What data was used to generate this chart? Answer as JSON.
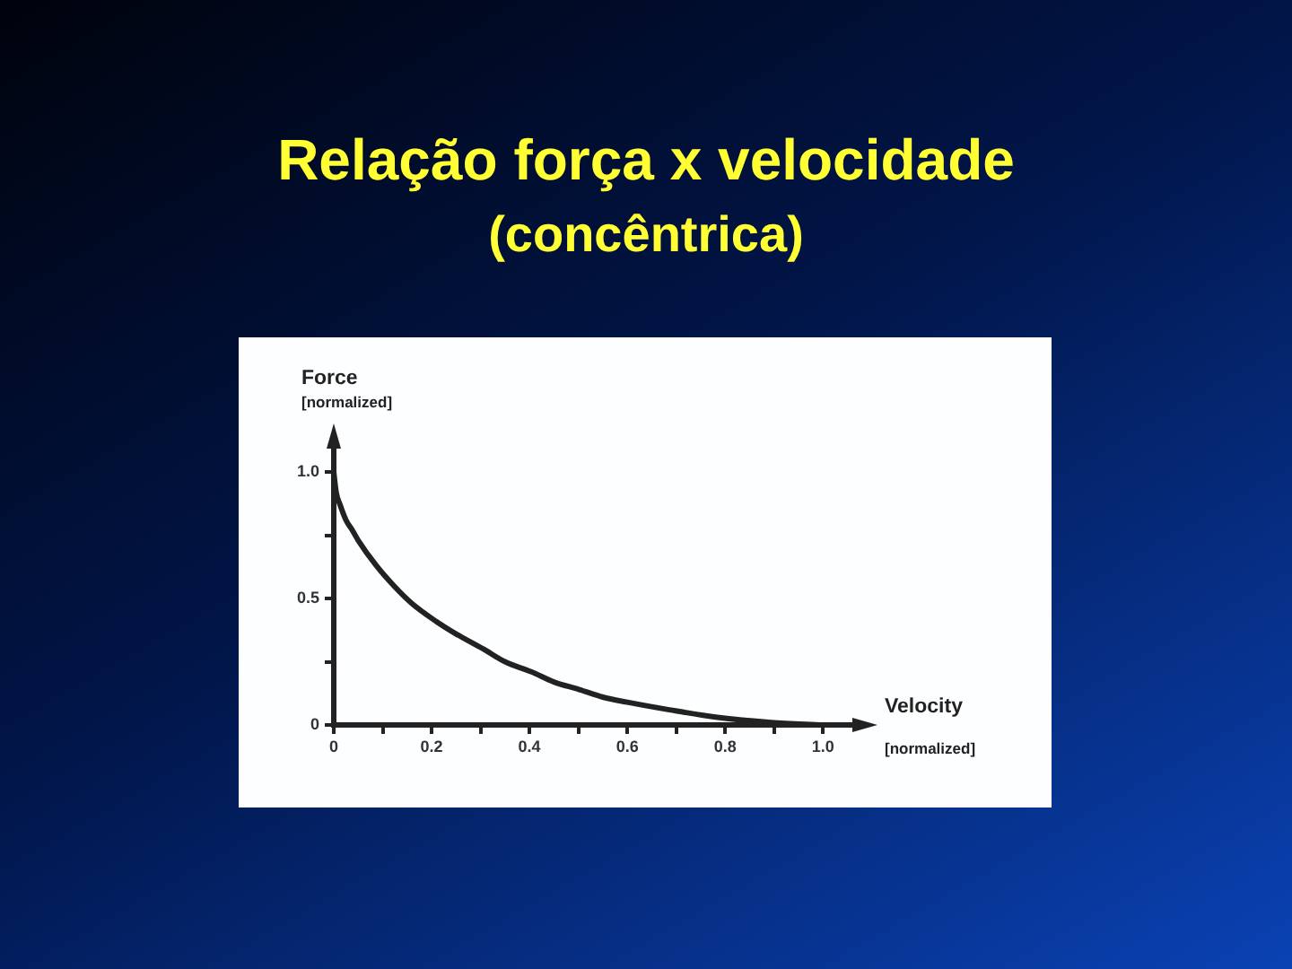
{
  "chart_data": {
    "type": "line",
    "title": "Relação força x velocidade",
    "subtitle": "(concêntrica)",
    "xlabel": "Velocity\n[normalized]",
    "ylabel": "Force\n[normalized]",
    "x": [
      0,
      0.005,
      0.013,
      0.025,
      0.038,
      0.05,
      0.087,
      0.123,
      0.16,
      0.209,
      0.25,
      0.306,
      0.35,
      0.404,
      0.45,
      0.502,
      0.55,
      0.6,
      0.686,
      0.784,
      0.894,
      1.0
    ],
    "series": [
      {
        "color": "#222222",
        "values": [
          1.0,
          0.92,
          0.87,
          0.81,
          0.77,
          0.73,
          0.63,
          0.55,
          0.48,
          0.41,
          0.36,
          0.3,
          0.25,
          0.21,
          0.17,
          0.14,
          0.11,
          0.09,
          0.06,
          0.03,
          0.01,
          0.0
        ]
      }
    ],
    "xlim": [
      0,
      1.06
    ],
    "ylim": [
      0,
      1.1
    ],
    "xticks": [
      0,
      {
        "value": 0.1,
        "label": null
      },
      0.2,
      {
        "value": 0.3,
        "label": null
      },
      0.4,
      {
        "value": 0.5,
        "label": null
      },
      0.6,
      {
        "value": 0.7,
        "label": null
      },
      0.8,
      {
        "value": 0.9,
        "label": null
      },
      {
        "value": 1,
        "label": "1.0"
      }
    ],
    "yticks": [
      0,
      {
        "value": 0.25,
        "label": null
      },
      0.5,
      {
        "value": 0.75,
        "label": null
      },
      {
        "value": 1,
        "label": "1.0"
      }
    ],
    "marker": "none",
    "line_style": "solid"
  }
}
